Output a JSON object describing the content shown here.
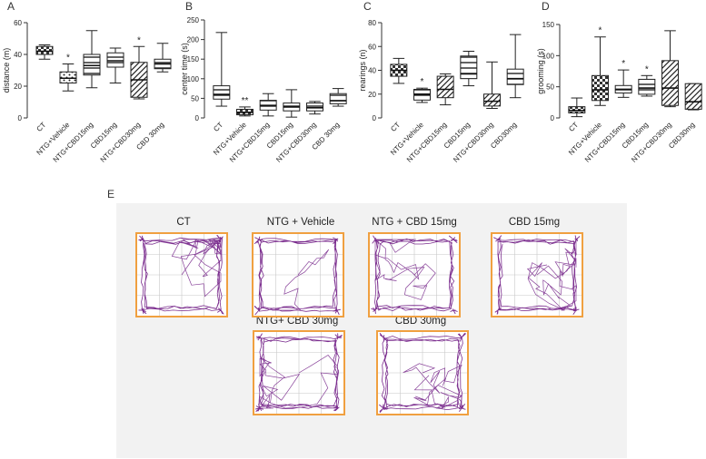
{
  "panel_letters": {
    "a": "A",
    "b": "B",
    "c": "C",
    "d": "D",
    "e": "E"
  },
  "colors": {
    "track": "#7b2d8e",
    "frame": "#f0a040",
    "grid": "#c8c8c8",
    "box_edge": "#222222"
  },
  "chart_data": [
    {
      "type": "box",
      "panel": "A",
      "ylabel": "distance (m)",
      "ylim": [
        0,
        60
      ],
      "yticks": [
        0,
        20,
        40,
        60
      ],
      "categories": [
        "CT",
        "NTG+Vehicle",
        "NTG+CBD15mg",
        "CBD15mg",
        "NTG+CBD30mg",
        "CBD 30mg"
      ],
      "patterns": [
        "checker",
        "dots",
        "hlines",
        "hlines",
        "dlines",
        "hlines"
      ],
      "boxes": [
        {
          "min": 37,
          "q1": 40,
          "median": 42,
          "q3": 45,
          "max": 46
        },
        {
          "min": 17,
          "q1": 22,
          "median": 25,
          "q3": 29,
          "max": 34
        },
        {
          "min": 19,
          "q1": 27,
          "median": 33,
          "q3": 40,
          "max": 55
        },
        {
          "min": 22,
          "q1": 32,
          "median": 36,
          "q3": 41,
          "max": 44
        },
        {
          "min": 12,
          "q1": 13,
          "median": 24,
          "q3": 35,
          "max": 45
        },
        {
          "min": 29,
          "q1": 31,
          "median": 34,
          "q3": 37,
          "max": 47
        }
      ],
      "annotations": [
        {
          "index": 1,
          "text": "*"
        },
        {
          "index": 4,
          "text": "*"
        }
      ]
    },
    {
      "type": "box",
      "panel": "B",
      "ylabel": "center time (s)",
      "ylim": [
        0,
        250
      ],
      "yticks": [
        0,
        50,
        100,
        150,
        200,
        250
      ],
      "categories": [
        "CT",
        "NTG+Vehicle",
        "NTG+CBD15mg",
        "CBD15mg",
        "NTG+CBD30mg",
        "CBD 30mg"
      ],
      "patterns": [
        "hlines",
        "checker",
        "hlines",
        "hlines",
        "hlines",
        "hlines"
      ],
      "boxes": [
        {
          "min": 30,
          "q1": 48,
          "median": 60,
          "q3": 82,
          "max": 218
        },
        {
          "min": 5,
          "q1": 8,
          "median": 14,
          "q3": 22,
          "max": 28
        },
        {
          "min": 5,
          "q1": 20,
          "median": 32,
          "q3": 45,
          "max": 62
        },
        {
          "min": 2,
          "q1": 18,
          "median": 28,
          "q3": 38,
          "max": 72
        },
        {
          "min": 10,
          "q1": 18,
          "median": 26,
          "q3": 38,
          "max": 42
        },
        {
          "min": 30,
          "q1": 36,
          "median": 44,
          "q3": 62,
          "max": 75
        }
      ],
      "annotations": [
        {
          "index": 1,
          "text": "**"
        }
      ]
    },
    {
      "type": "box",
      "panel": "C",
      "ylabel": "rearings (n)",
      "ylim": [
        0,
        80
      ],
      "yticks": [
        0,
        20,
        40,
        60,
        80
      ],
      "categories": [
        "CT",
        "NTG+Vehicle",
        "NTG+CBD15mg",
        "CBD15mg",
        "NTG+CBD30mg",
        "CBD30mg"
      ],
      "patterns": [
        "checker",
        "hlines",
        "dlines",
        "hlines",
        "dlines",
        "hlines"
      ],
      "boxes": [
        {
          "min": 29,
          "q1": 35,
          "median": 40,
          "q3": 45,
          "max": 50
        },
        {
          "min": 13,
          "q1": 15,
          "median": 20,
          "q3": 24,
          "max": 25
        },
        {
          "min": 11,
          "q1": 17,
          "median": 24,
          "q3": 35,
          "max": 37
        },
        {
          "min": 27,
          "q1": 33,
          "median": 37,
          "q3": 52,
          "max": 56
        },
        {
          "min": 8,
          "q1": 10,
          "median": 14,
          "q3": 20,
          "max": 47
        },
        {
          "min": 17,
          "q1": 28,
          "median": 33,
          "q3": 41,
          "max": 70
        }
      ],
      "annotations": [
        {
          "index": 1,
          "text": "*"
        }
      ]
    },
    {
      "type": "box",
      "panel": "D",
      "ylabel": "grooming (s)",
      "ylim": [
        0,
        150
      ],
      "yticks": [
        0,
        50,
        100,
        150
      ],
      "categories": [
        "CT",
        "NTG+Vehicle",
        "NTG+CBD15mg",
        "CBD15mg",
        "NTG+CBD30mg",
        "CBD30mg"
      ],
      "patterns": [
        "checker",
        "checker",
        "hlines",
        "hlines",
        "dlines",
        "dlines"
      ],
      "boxes": [
        {
          "min": 2,
          "q1": 8,
          "median": 12,
          "q3": 18,
          "max": 32
        },
        {
          "min": 20,
          "q1": 28,
          "median": 45,
          "q3": 68,
          "max": 130
        },
        {
          "min": 33,
          "q1": 40,
          "median": 46,
          "q3": 52,
          "max": 77
        },
        {
          "min": 35,
          "q1": 38,
          "median": 48,
          "q3": 62,
          "max": 68
        },
        {
          "min": 18,
          "q1": 20,
          "median": 48,
          "q3": 92,
          "max": 140
        },
        {
          "min": 13,
          "q1": 14,
          "median": 26,
          "q3": 55,
          "max": 55
        }
      ],
      "annotations": [
        {
          "index": 1,
          "text": "*"
        },
        {
          "index": 2,
          "text": "*"
        },
        {
          "index": 3,
          "text": "*"
        }
      ]
    }
  ],
  "open_field": {
    "cells": [
      {
        "label": "CT",
        "density": 1.0
      },
      {
        "label": "NTG + Vehicle",
        "density": 0.3
      },
      {
        "label": "NTG + CBD 15mg",
        "density": 0.8
      },
      {
        "label": "CBD 15mg",
        "density": 0.85
      },
      {
        "label": "NTG+ CBD 30mg",
        "density": 0.7
      },
      {
        "label": "CBD 30mg",
        "density": 0.75
      }
    ]
  }
}
